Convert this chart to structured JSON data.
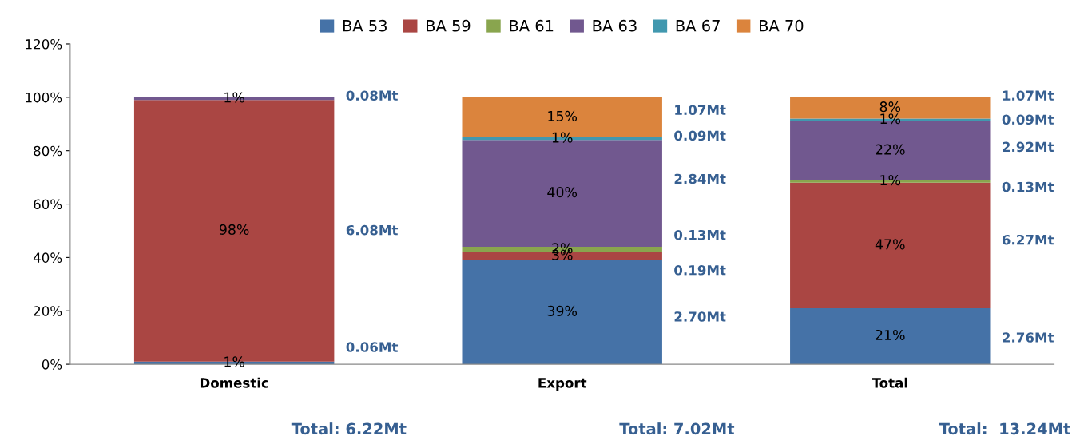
{
  "chart_data": {
    "type": "bar",
    "stacked": true,
    "categories": [
      "Domestic",
      "Export",
      "Total"
    ],
    "series": [
      {
        "name": "BA 53",
        "color": "#4572a7",
        "values": [
          1,
          39,
          21
        ],
        "value_labels": [
          "1%",
          "39%",
          "21%"
        ]
      },
      {
        "name": "BA 59",
        "color": "#aa4643",
        "values": [
          98,
          3,
          47
        ],
        "value_labels": [
          "98%",
          "3%",
          "47%"
        ]
      },
      {
        "name": "BA 61",
        "color": "#89a54e",
        "values": [
          0,
          2,
          1
        ],
        "value_labels": [
          null,
          "2%",
          "1%"
        ]
      },
      {
        "name": "BA 63",
        "color": "#71588f",
        "values": [
          1,
          40,
          22
        ],
        "value_labels": [
          "1%",
          "40%",
          "22%"
        ]
      },
      {
        "name": "BA 67",
        "color": "#4198af",
        "values": [
          0,
          1,
          1
        ],
        "value_labels": [
          null,
          "1%",
          "1%"
        ]
      },
      {
        "name": "BA 70",
        "color": "#db843d",
        "values": [
          0,
          15,
          8
        ],
        "value_labels": [
          null,
          "15%",
          "8%"
        ]
      }
    ],
    "ylim": [
      0,
      120
    ],
    "yticks": [
      {
        "value": 0,
        "label": "0%"
      },
      {
        "value": 20,
        "label": "20%"
      },
      {
        "value": 40,
        "label": "40%"
      },
      {
        "value": 60,
        "label": "60%"
      },
      {
        "value": 80,
        "label": "80%"
      },
      {
        "value": 100,
        "label": "100%"
      },
      {
        "value": 120,
        "label": "120%"
      }
    ],
    "grid": false,
    "legend": "top",
    "annotations": [
      "0.08Mt",
      "6.08Mt",
      "0.06Mt",
      "1.07Mt",
      "0.09Mt",
      "2.84Mt",
      "0.13Mt",
      "0.19Mt",
      "2.70Mt",
      "1.07Mt",
      "0.09Mt",
      "2.92Mt",
      "0.13Mt",
      "6.27Mt",
      "2.76Mt",
      "Total: 6.22Mt",
      "Total: 7.02Mt",
      "Total:  13.24Mt"
    ]
  }
}
